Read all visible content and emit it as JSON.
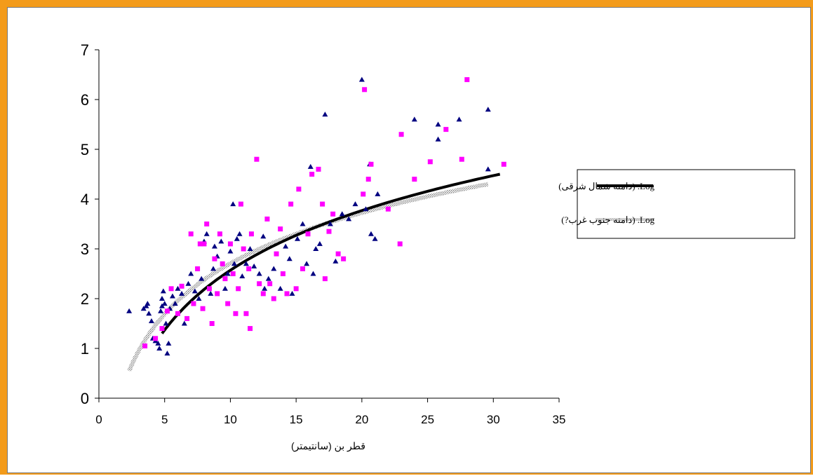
{
  "chart_data": {
    "type": "scatter",
    "xlabel": "قطر بن (سانتیمتر)",
    "ylabel": "",
    "xlim": [
      0,
      35
    ],
    "ylim": [
      0,
      7
    ],
    "x_ticks": [
      "0",
      "5",
      "10",
      "15",
      "20",
      "25",
      "30",
      "35"
    ],
    "y_ticks": [
      "0",
      "1",
      "2",
      "3",
      "4",
      "5",
      "6",
      "7"
    ],
    "grid": false,
    "legend_position": "right",
    "legend": [
      {
        "label": "Log. (دامنه شمال شرقی)",
        "style": "solid-black"
      },
      {
        "label": "Log. (دامنه جنوب غرب?)",
        "style": "dotted-gray"
      }
    ],
    "series": [
      {
        "marker": "triangle",
        "color": "#000080",
        "points": [
          [
            2.3,
            1.75
          ],
          [
            3.4,
            1.8
          ],
          [
            3.6,
            1.85
          ],
          [
            3.7,
            1.9
          ],
          [
            3.8,
            1.7
          ],
          [
            4.0,
            1.55
          ],
          [
            4.1,
            1.2
          ],
          [
            4.3,
            1.15
          ],
          [
            4.5,
            1.1
          ],
          [
            4.6,
            1.0
          ],
          [
            4.7,
            1.75
          ],
          [
            4.8,
            2.0
          ],
          [
            4.8,
            1.85
          ],
          [
            4.9,
            2.15
          ],
          [
            5.0,
            1.9
          ],
          [
            5.1,
            1.5
          ],
          [
            5.2,
            0.9
          ],
          [
            5.3,
            1.1
          ],
          [
            5.4,
            1.8
          ],
          [
            5.6,
            2.05
          ],
          [
            5.8,
            1.9
          ],
          [
            6.0,
            2.2
          ],
          [
            6.3,
            2.1
          ],
          [
            6.5,
            1.5
          ],
          [
            6.8,
            2.3
          ],
          [
            7.0,
            2.5
          ],
          [
            7.3,
            2.15
          ],
          [
            7.6,
            2.0
          ],
          [
            7.8,
            2.4
          ],
          [
            8.0,
            3.15
          ],
          [
            8.2,
            3.3
          ],
          [
            8.5,
            2.1
          ],
          [
            8.7,
            2.6
          ],
          [
            8.8,
            3.05
          ],
          [
            9.0,
            2.85
          ],
          [
            9.3,
            3.15
          ],
          [
            9.6,
            2.2
          ],
          [
            9.8,
            2.5
          ],
          [
            10.0,
            2.95
          ],
          [
            10.2,
            3.9
          ],
          [
            10.3,
            2.7
          ],
          [
            10.5,
            3.2
          ],
          [
            10.7,
            3.3
          ],
          [
            10.9,
            2.45
          ],
          [
            11.2,
            2.7
          ],
          [
            11.5,
            3.0
          ],
          [
            11.8,
            2.65
          ],
          [
            12.2,
            2.5
          ],
          [
            12.5,
            3.25
          ],
          [
            12.6,
            2.2
          ],
          [
            12.9,
            2.4
          ],
          [
            13.3,
            2.6
          ],
          [
            13.8,
            2.2
          ],
          [
            14.2,
            3.05
          ],
          [
            14.5,
            2.8
          ],
          [
            14.7,
            2.1
          ],
          [
            15.1,
            3.2
          ],
          [
            15.5,
            3.5
          ],
          [
            15.8,
            2.7
          ],
          [
            16.1,
            4.65
          ],
          [
            16.3,
            2.5
          ],
          [
            16.5,
            3.0
          ],
          [
            16.8,
            3.1
          ],
          [
            17.2,
            5.7
          ],
          [
            17.6,
            3.5
          ],
          [
            18.0,
            2.75
          ],
          [
            18.5,
            3.7
          ],
          [
            19.0,
            3.6
          ],
          [
            19.5,
            3.9
          ],
          [
            20.0,
            6.4
          ],
          [
            20.3,
            3.8
          ],
          [
            20.6,
            4.7
          ],
          [
            20.7,
            3.3
          ],
          [
            21.0,
            3.2
          ],
          [
            21.2,
            4.1
          ],
          [
            24.0,
            5.6
          ],
          [
            25.8,
            5.5
          ],
          [
            25.8,
            5.2
          ],
          [
            27.4,
            5.6
          ],
          [
            29.6,
            5.8
          ],
          [
            29.6,
            4.6
          ]
        ]
      },
      {
        "marker": "square",
        "color": "#ff00ff",
        "points": [
          [
            3.5,
            1.05
          ],
          [
            4.3,
            1.2
          ],
          [
            4.8,
            1.4
          ],
          [
            5.2,
            1.75
          ],
          [
            5.5,
            2.2
          ],
          [
            6.0,
            1.7
          ],
          [
            6.3,
            2.25
          ],
          [
            6.7,
            1.6
          ],
          [
            7.0,
            3.3
          ],
          [
            7.2,
            1.9
          ],
          [
            7.5,
            2.6
          ],
          [
            7.7,
            3.1
          ],
          [
            7.9,
            1.8
          ],
          [
            8.0,
            3.1
          ],
          [
            8.2,
            3.5
          ],
          [
            8.4,
            2.2
          ],
          [
            8.6,
            1.5
          ],
          [
            8.8,
            2.8
          ],
          [
            9.0,
            2.1
          ],
          [
            9.2,
            3.3
          ],
          [
            9.4,
            2.7
          ],
          [
            9.6,
            2.4
          ],
          [
            9.8,
            1.9
          ],
          [
            10.0,
            3.1
          ],
          [
            10.2,
            2.5
          ],
          [
            10.4,
            1.7
          ],
          [
            10.6,
            2.2
          ],
          [
            10.8,
            3.9
          ],
          [
            11.0,
            3.0
          ],
          [
            11.2,
            1.7
          ],
          [
            11.4,
            2.6
          ],
          [
            11.5,
            1.4
          ],
          [
            11.6,
            3.3
          ],
          [
            12.0,
            4.8
          ],
          [
            12.2,
            2.3
          ],
          [
            12.5,
            2.1
          ],
          [
            12.8,
            3.6
          ],
          [
            13.0,
            2.3
          ],
          [
            13.3,
            2.0
          ],
          [
            13.5,
            2.9
          ],
          [
            13.8,
            3.4
          ],
          [
            14.0,
            2.5
          ],
          [
            14.3,
            2.1
          ],
          [
            14.6,
            3.9
          ],
          [
            15.0,
            2.2
          ],
          [
            15.2,
            4.2
          ],
          [
            15.5,
            2.6
          ],
          [
            15.9,
            3.3
          ],
          [
            16.2,
            4.5
          ],
          [
            16.7,
            4.6
          ],
          [
            17.0,
            3.9
          ],
          [
            17.2,
            2.4
          ],
          [
            17.5,
            3.35
          ],
          [
            17.8,
            3.7
          ],
          [
            18.2,
            2.9
          ],
          [
            18.6,
            2.8
          ],
          [
            20.2,
            6.2
          ],
          [
            20.1,
            4.1
          ],
          [
            20.5,
            4.4
          ],
          [
            20.7,
            4.7
          ],
          [
            22.0,
            3.8
          ],
          [
            22.9,
            3.1
          ],
          [
            23.0,
            5.3
          ],
          [
            24.0,
            4.4
          ],
          [
            25.2,
            4.75
          ],
          [
            26.4,
            5.4
          ],
          [
            27.6,
            4.8
          ],
          [
            28.0,
            6.4
          ],
          [
            30.8,
            4.7
          ]
        ]
      }
    ],
    "trendlines": [
      {
        "name": "Log. (دامنه شمال شرقی)",
        "type": "log",
        "x_range": [
          4.8,
          30.5
        ],
        "y_range": [
          1.3,
          4.5
        ]
      },
      {
        "name": "Log. (دامنه جنوب غرب?)",
        "type": "log",
        "x_range": [
          2.3,
          29.6
        ],
        "y_range": [
          0.55,
          4.3
        ]
      }
    ]
  }
}
